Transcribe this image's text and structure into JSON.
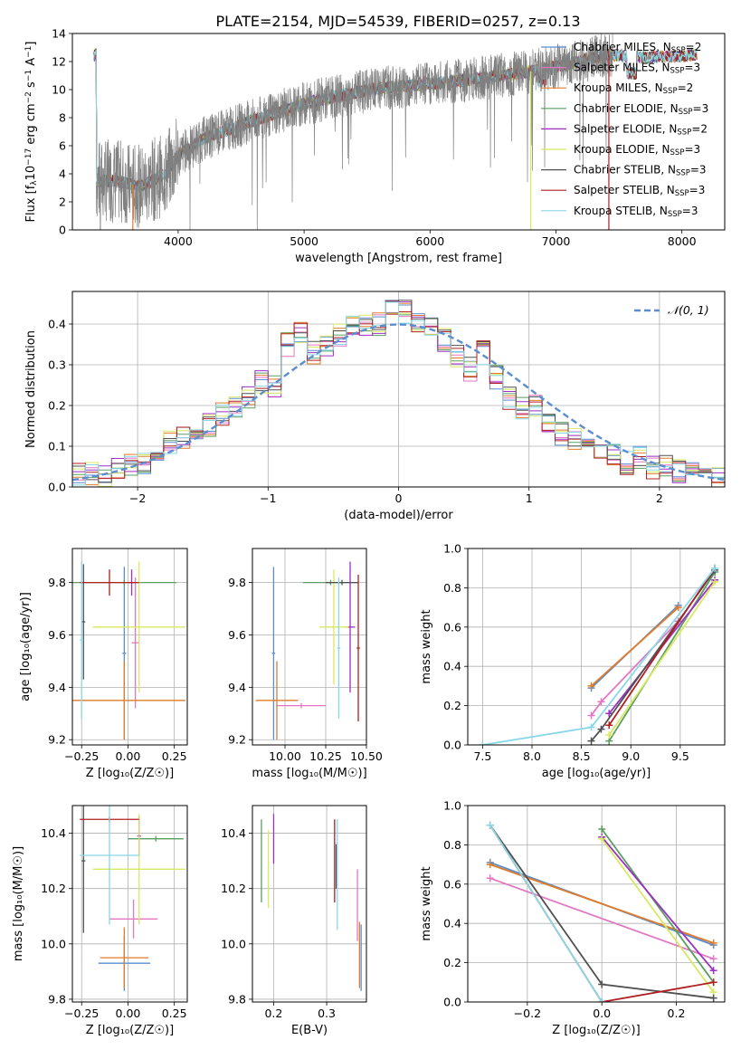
{
  "figure": {
    "title": "PLATE=2154, MJD=54539, FIBERID=0257, z=0.13"
  },
  "colors": {
    "data": "#808080",
    "Chabrier MILES": "#5a8ed0",
    "Salpeter MILES": "#e377c2",
    "Kroupa MILES": "#e07b2a",
    "Chabrier ELODIE": "#5a9e60",
    "Salpeter ELODIE": "#9b30c2",
    "Kroupa ELODIE": "#d8e860",
    "Chabrier STELIB": "#505050",
    "Salpeter STELIB": "#b02020",
    "Kroupa STELIB": "#88d8e8",
    "gaussian": "#5a8ed0",
    "grid": "#b0b0b0"
  },
  "model_legend": [
    {
      "name": "Chabrier MILES",
      "pre": "Chabrier MILES, N",
      "sub": "SSP",
      "post": "=2"
    },
    {
      "name": "Salpeter MILES",
      "pre": "Salpeter MILES, N",
      "sub": "SSP",
      "post": "=3"
    },
    {
      "name": "Kroupa MILES",
      "pre": "Kroupa MILES, N",
      "sub": "SSP",
      "post": "=2"
    },
    {
      "name": "Chabrier ELODIE",
      "pre": "Chabrier ELODIE, N",
      "sub": "SSP",
      "post": "=3"
    },
    {
      "name": "Salpeter ELODIE",
      "pre": "Salpeter ELODIE, N",
      "sub": "SSP",
      "post": "=2"
    },
    {
      "name": "Kroupa ELODIE",
      "pre": "Kroupa ELODIE, N",
      "sub": "SSP",
      "post": "=3"
    },
    {
      "name": "Chabrier STELIB",
      "pre": "Chabrier STELIB, N",
      "sub": "SSP",
      "post": "=3"
    },
    {
      "name": "Salpeter STELIB",
      "pre": "Salpeter STELIB, N",
      "sub": "SSP",
      "post": "=3"
    },
    {
      "name": "Kroupa STELIB",
      "pre": "Kroupa STELIB, N",
      "sub": "SSP",
      "post": "=3"
    }
  ],
  "chart_data": [
    {
      "id": "spectrum",
      "type": "line",
      "xlabel": "wavelength [Angstrom, rest frame]",
      "ylabel": {
        "pre": "Flux [f",
        "sub1": "λ",
        "mid1": "10",
        "sup1": "−17",
        "mid2": " erg cm",
        "sup2": "−2",
        "mid3": " s",
        "sup3": "−1",
        "mid4": " A",
        "sup4": "−1",
        "post": "]"
      },
      "xlim": [
        3160,
        8340
      ],
      "ylim": [
        0,
        14
      ],
      "xticks": [
        "4000",
        "5000",
        "6000",
        "7000",
        "8000"
      ],
      "yticks": [
        "0",
        "2",
        "4",
        "6",
        "8",
        "10",
        "12",
        "14"
      ],
      "continuum_points": [
        [
          3350,
          3.5
        ],
        [
          3500,
          3.5
        ],
        [
          3700,
          3.1
        ],
        [
          3900,
          4.0
        ],
        [
          4000,
          5.3
        ],
        [
          4200,
          6.5
        ],
        [
          4500,
          7.5
        ],
        [
          4800,
          8.4
        ],
        [
          5000,
          9.0
        ],
        [
          5300,
          9.6
        ],
        [
          5600,
          10.1
        ],
        [
          6000,
          10.4
        ],
        [
          6300,
          10.7
        ],
        [
          6560,
          11.0
        ],
        [
          6800,
          11.3
        ],
        [
          7100,
          11.8
        ],
        [
          7400,
          12.5
        ],
        [
          7700,
          12.3
        ],
        [
          8000,
          12.4
        ],
        [
          8100,
          12.5
        ]
      ],
      "data_range": [
        3350,
        7450
      ],
      "model_range": [
        3330,
        8120
      ],
      "notes_visible": "noisy grey observed spectrum with overlaid colored model spectra"
    },
    {
      "id": "residuals",
      "type": "histogram",
      "xlabel": "(data-model)/error",
      "ylabel": "Normed distribution",
      "xlim": [
        -2.5,
        2.5
      ],
      "ylim": [
        0,
        0.48
      ],
      "xticks": [
        "−2",
        "−1",
        "0",
        "1",
        "2"
      ],
      "yticks": [
        "0.0",
        "0.1",
        "0.2",
        "0.3",
        "0.4"
      ],
      "legend": {
        "label": "𝒩(0, 1)",
        "position": "upper right"
      },
      "bin_edges": [
        -2.5,
        -2.4,
        -2.3,
        -2.2,
        -2.1,
        -2.0,
        -1.9,
        -1.8,
        -1.7,
        -1.6,
        -1.5,
        -1.4,
        -1.3,
        -1.2,
        -1.1,
        -1.0,
        -0.9,
        -0.8,
        -0.7,
        -0.6,
        -0.5,
        -0.4,
        -0.3,
        -0.2,
        -0.1,
        0.0,
        0.1,
        0.2,
        0.3,
        0.4,
        0.5,
        0.6,
        0.7,
        0.8,
        0.9,
        1.0,
        1.1,
        1.2,
        1.3,
        1.4,
        1.5,
        1.6,
        1.7,
        1.8,
        1.9,
        2.0,
        2.1,
        2.2,
        2.3,
        2.4,
        2.5
      ],
      "base_density": [
        0.03,
        0.03,
        0.03,
        0.05,
        0.05,
        0.06,
        0.09,
        0.11,
        0.12,
        0.14,
        0.15,
        0.18,
        0.2,
        0.22,
        0.26,
        0.25,
        0.35,
        0.38,
        0.33,
        0.35,
        0.37,
        0.39,
        0.4,
        0.4,
        0.44,
        0.43,
        0.41,
        0.4,
        0.36,
        0.32,
        0.29,
        0.33,
        0.27,
        0.22,
        0.19,
        0.2,
        0.15,
        0.13,
        0.12,
        0.1,
        0.09,
        0.08,
        0.06,
        0.07,
        0.05,
        0.05,
        0.04,
        0.03,
        0.03,
        0.02
      ],
      "gaussian": {
        "mean": 0,
        "sigma": 1
      }
    },
    {
      "id": "age_vs_Z",
      "type": "errorbar",
      "xlabel": "Z [log₁₀(Z/Z☉)]",
      "ylabel": "age  [log₁₀(age/yr)]",
      "xlim": [
        -0.3,
        0.32
      ],
      "ylim": [
        9.18,
        9.93
      ],
      "xticks": [
        "−0.25",
        "0.00",
        "0.25"
      ],
      "yticks": [
        "9.2",
        "9.4",
        "9.6",
        "9.8"
      ],
      "points": [
        {
          "series": "Chabrier MILES",
          "x": -0.02,
          "y": 9.53,
          "xerr": 0.01,
          "yerr": 0.33
        },
        {
          "series": "Salpeter MILES",
          "x": 0.04,
          "y": 9.57,
          "xerr": 0.02,
          "yerr": 0.25
        },
        {
          "series": "Kroupa MILES",
          "x": -0.02,
          "y": 9.35,
          "xerr": 0.33,
          "yerr": 0.15
        },
        {
          "series": "Chabrier ELODIE",
          "x": -0.02,
          "y": 9.8,
          "xerr": 0.28,
          "yerr": 0.01
        },
        {
          "series": "Salpeter ELODIE",
          "x": 0.02,
          "y": 9.8,
          "xerr": 0.02,
          "yerr": 0.05
        },
        {
          "series": "Kroupa ELODIE",
          "x": 0.06,
          "y": 9.63,
          "xerr": 0.25,
          "yerr": 0.25
        },
        {
          "series": "Chabrier STELIB",
          "x": -0.24,
          "y": 9.65,
          "xerr": 0.01,
          "yerr": 0.22
        },
        {
          "series": "Salpeter STELIB",
          "x": -0.1,
          "y": 9.8,
          "xerr": 0.16,
          "yerr": 0.05
        },
        {
          "series": "Kroupa STELIB",
          "x": -0.25,
          "y": 9.58,
          "xerr": 0.01,
          "yerr": 0.3
        }
      ]
    },
    {
      "id": "age_vs_mass",
      "type": "errorbar",
      "xlabel": "mass [log₁₀(M/M☉)]",
      "ylabel": "",
      "xlim": [
        9.8,
        10.5
      ],
      "ylim": [
        9.18,
        9.93
      ],
      "xticks": [
        "10.00",
        "10.25",
        "10.50"
      ],
      "yticks": [
        "9.2",
        "9.4",
        "9.6",
        "9.8"
      ],
      "points": [
        {
          "series": "Chabrier MILES",
          "x": 9.93,
          "y": 9.53,
          "xerr": 0.01,
          "yerr": 0.33
        },
        {
          "series": "Salpeter MILES",
          "x": 10.1,
          "y": 9.33,
          "xerr": 0.15,
          "yerr": 0.01
        },
        {
          "series": "Kroupa MILES",
          "x": 9.95,
          "y": 9.35,
          "xerr": 0.13,
          "yerr": 0.15
        },
        {
          "series": "Chabrier ELODIE",
          "x": 10.28,
          "y": 9.8,
          "xerr": 0.17,
          "yerr": 0.01
        },
        {
          "series": "Salpeter ELODIE",
          "x": 10.4,
          "y": 9.63,
          "xerr": 0.03,
          "yerr": 0.25
        },
        {
          "series": "Kroupa ELODIE",
          "x": 10.3,
          "y": 9.63,
          "xerr": 0.09,
          "yerr": 0.22
        },
        {
          "series": "Chabrier STELIB",
          "x": 10.35,
          "y": 9.8,
          "xerr": 0.1,
          "yerr": 0.01
        },
        {
          "series": "Salpeter STELIB",
          "x": 10.45,
          "y": 9.55,
          "xerr": 0.01,
          "yerr": 0.28
        },
        {
          "series": "Kroupa STELIB",
          "x": 10.33,
          "y": 9.55,
          "xerr": 0.01,
          "yerr": 0.27
        }
      ]
    },
    {
      "id": "weight_vs_age",
      "type": "line",
      "xlabel": "age  [log₁₀(age/yr)]",
      "ylabel": "mass weight",
      "xlim": [
        7.35,
        9.95
      ],
      "ylim": [
        0,
        1
      ],
      "xticks": [
        "7.5",
        "8.0",
        "8.5",
        "9.0",
        "9.5"
      ],
      "yticks": [
        "0.0",
        "0.2",
        "0.4",
        "0.6",
        "0.8",
        "1.0"
      ],
      "series": [
        {
          "name": "Chabrier MILES",
          "x": [
            8.6,
            9.48
          ],
          "y": [
            0.29,
            0.71
          ]
        },
        {
          "name": "Salpeter MILES",
          "x": [
            8.6,
            8.7,
            9.48
          ],
          "y": [
            0.15,
            0.22,
            0.63
          ]
        },
        {
          "name": "Kroupa MILES",
          "x": [
            8.6,
            9.48
          ],
          "y": [
            0.3,
            0.7
          ]
        },
        {
          "name": "Chabrier ELODIE",
          "x": [
            8.78,
            9.85
          ],
          "y": [
            0.02,
            0.88
          ]
        },
        {
          "name": "Salpeter ELODIE",
          "x": [
            8.78,
            9.85
          ],
          "y": [
            0.16,
            0.84
          ]
        },
        {
          "name": "Kroupa ELODIE",
          "x": [
            8.78,
            9.85
          ],
          "y": [
            0.05,
            0.83
          ]
        },
        {
          "name": "Chabrier STELIB",
          "x": [
            8.6,
            8.7,
            9.85
          ],
          "y": [
            0.02,
            0.08,
            0.89
          ]
        },
        {
          "name": "Salpeter STELIB",
          "x": [
            8.78,
            9.85
          ],
          "y": [
            0.1,
            0.9
          ]
        },
        {
          "name": "Kroupa STELIB",
          "x": [
            7.5,
            8.6,
            9.85
          ],
          "y": [
            0.0,
            0.09,
            0.9
          ]
        }
      ]
    },
    {
      "id": "mass_vs_Z",
      "type": "errorbar",
      "xlabel": "Z [log₁₀(Z/Z☉)]",
      "ylabel": "mass [log₁₀(M/M☉)]",
      "xlim": [
        -0.3,
        0.32
      ],
      "ylim": [
        9.79,
        10.5
      ],
      "xticks": [
        "−0.25",
        "0.00",
        "0.25"
      ],
      "yticks": [
        "9.8",
        "10.0",
        "10.2",
        "10.4"
      ],
      "points": [
        {
          "series": "Chabrier MILES",
          "x": -0.02,
          "y": 9.93,
          "xerr": 0.14,
          "yerr": 0.1
        },
        {
          "series": "Salpeter MILES",
          "x": 0.03,
          "y": 10.09,
          "xerr": 0.13,
          "yerr": 0.07
        },
        {
          "series": "Kroupa MILES",
          "x": -0.02,
          "y": 9.95,
          "xerr": 0.13,
          "yerr": 0.11
        },
        {
          "series": "Chabrier ELODIE",
          "x": 0.15,
          "y": 10.38,
          "xerr": 0.15,
          "yerr": 0.01
        },
        {
          "series": "Salpeter ELODIE",
          "x": 0.06,
          "y": 10.39,
          "xerr": 0.01,
          "yerr": 0.07
        },
        {
          "series": "Kroupa ELODIE",
          "x": 0.06,
          "y": 10.27,
          "xerr": 0.25,
          "yerr": 0.2
        },
        {
          "series": "Chabrier STELIB",
          "x": -0.24,
          "y": 10.3,
          "xerr": 0.01,
          "yerr": 0.26
        },
        {
          "series": "Salpeter STELIB",
          "x": -0.1,
          "y": 10.45,
          "xerr": 0.16,
          "yerr": 0.01
        },
        {
          "series": "Kroupa STELIB",
          "x": -0.1,
          "y": 10.32,
          "xerr": 0.16,
          "yerr": 0.25
        }
      ]
    },
    {
      "id": "mass_vs_EBV",
      "type": "errorbar",
      "xlabel": "E(B-V)",
      "ylabel": "",
      "xlim": [
        0.16,
        0.375
      ],
      "ylim": [
        9.79,
        10.5
      ],
      "xticks": [
        "0.2",
        "0.3"
      ],
      "yticks": [
        "9.8",
        "10.0",
        "10.2",
        "10.4"
      ],
      "points": [
        {
          "series": "Chabrier ELODIE",
          "x": 0.177,
          "y": 10.3,
          "xerr": 0,
          "yerr": 0.15
        },
        {
          "series": "Kroupa ELODIE",
          "x": 0.19,
          "y": 10.27,
          "xerr": 0,
          "yerr": 0.14
        },
        {
          "series": "Salpeter ELODIE",
          "x": 0.2,
          "y": 10.38,
          "xerr": 0,
          "yerr": 0.09
        },
        {
          "series": "Salpeter STELIB",
          "x": 0.315,
          "y": 10.3,
          "xerr": 0,
          "yerr": 0.15
        },
        {
          "series": "Chabrier STELIB",
          "x": 0.318,
          "y": 10.28,
          "xerr": 0,
          "yerr": 0.08
        },
        {
          "series": "Kroupa STELIB",
          "x": 0.32,
          "y": 10.25,
          "xerr": 0,
          "yerr": 0.2
        },
        {
          "series": "Salpeter MILES",
          "x": 0.358,
          "y": 10.14,
          "xerr": 0,
          "yerr": 0.13
        },
        {
          "series": "Kroupa MILES",
          "x": 0.362,
          "y": 9.96,
          "xerr": 0,
          "yerr": 0.12
        },
        {
          "series": "Chabrier MILES",
          "x": 0.365,
          "y": 9.95,
          "xerr": 0,
          "yerr": 0.12
        }
      ]
    },
    {
      "id": "weight_vs_Z",
      "type": "line",
      "xlabel": "Z [log₁₀(Z/Z☉)]",
      "ylabel": "mass weight",
      "xlim": [
        -0.36,
        0.33
      ],
      "ylim": [
        0,
        1
      ],
      "xticks": [
        "−0.2",
        "0.0",
        "0.2"
      ],
      "yticks": [
        "0.0",
        "0.2",
        "0.4",
        "0.6",
        "0.8",
        "1.0"
      ],
      "series": [
        {
          "name": "Chabrier MILES",
          "x": [
            -0.3,
            0.3
          ],
          "y": [
            0.71,
            0.29
          ]
        },
        {
          "name": "Salpeter MILES",
          "x": [
            -0.3,
            0.3
          ],
          "y": [
            0.63,
            0.22
          ]
        },
        {
          "name": "Kroupa MILES",
          "x": [
            -0.3,
            0.3
          ],
          "y": [
            0.7,
            0.3
          ]
        },
        {
          "name": "Chabrier ELODIE",
          "x": [
            0.0,
            0.3
          ],
          "y": [
            0.88,
            0.1
          ]
        },
        {
          "name": "Salpeter ELODIE",
          "x": [
            0.0,
            0.3
          ],
          "y": [
            0.84,
            0.16
          ]
        },
        {
          "name": "Kroupa ELODIE",
          "x": [
            0.0,
            0.3
          ],
          "y": [
            0.83,
            0.05
          ]
        },
        {
          "name": "Chabrier STELIB",
          "x": [
            -0.3,
            0.0,
            0.3
          ],
          "y": [
            0.9,
            0.09,
            0.02
          ]
        },
        {
          "name": "Salpeter STELIB",
          "x": [
            -0.3,
            0.0,
            0.3
          ],
          "y": [
            0.9,
            0.0,
            0.1
          ]
        },
        {
          "name": "Kroupa STELIB",
          "x": [
            -0.3,
            0.0
          ],
          "y": [
            0.9,
            0.0
          ]
        }
      ]
    }
  ]
}
